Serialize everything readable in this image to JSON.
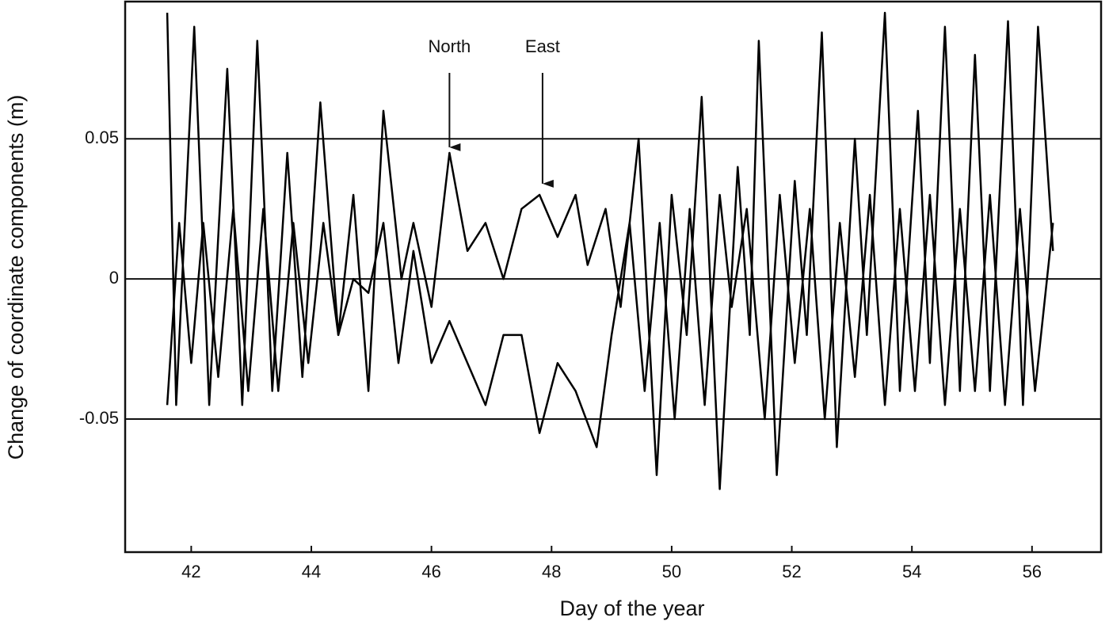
{
  "chart_data": {
    "type": "line",
    "xlabel": "Day of the year",
    "ylabel": "Change of coordinate components (m)",
    "xlim": [
      40.9,
      57.15
    ],
    "ylim": [
      -0.0975,
      0.099
    ],
    "xticks": [
      42,
      44,
      46,
      48,
      50,
      52,
      54,
      56
    ],
    "yticks": [
      -0.05,
      0,
      0.05
    ],
    "grid": true,
    "annotations": [
      {
        "text": "North",
        "x": 46.3,
        "y": 0.047
      },
      {
        "text": "East",
        "x": 47.85,
        "y": 0.034
      }
    ],
    "series": [
      {
        "color": "#000000",
        "x": [
          41.6,
          41.75,
          42.05,
          42.3,
          42.6,
          42.85,
          43.1,
          43.35,
          43.6,
          43.85,
          44.15,
          44.45,
          44.7,
          44.95,
          45.2,
          45.5,
          45.7,
          46.0,
          46.3,
          46.6,
          46.9,
          47.2,
          47.5,
          47.8,
          48.1,
          48.4,
          48.6,
          48.9,
          49.15,
          49.45,
          49.75,
          50.0,
          50.25,
          50.5,
          50.8,
          51.1,
          51.3,
          51.45,
          51.75,
          52.05,
          52.25,
          52.5,
          52.75,
          53.05,
          53.25,
          53.55,
          53.8,
          54.1,
          54.3,
          54.55,
          54.8,
          55.05,
          55.3,
          55.6,
          55.85,
          56.1,
          56.35
        ],
        "values": [
          0.095,
          -0.045,
          0.09,
          -0.045,
          0.075,
          -0.045,
          0.085,
          -0.04,
          0.045,
          -0.035,
          0.063,
          -0.02,
          0.03,
          -0.04,
          0.06,
          0.0,
          0.02,
          -0.01,
          0.045,
          0.01,
          0.02,
          0.0,
          0.025,
          0.03,
          0.015,
          0.03,
          0.005,
          0.025,
          -0.01,
          0.05,
          -0.07,
          0.03,
          -0.02,
          0.065,
          -0.075,
          0.04,
          -0.02,
          0.085,
          -0.07,
          0.035,
          -0.02,
          0.088,
          -0.06,
          0.05,
          -0.02,
          0.095,
          -0.04,
          0.06,
          -0.03,
          0.09,
          -0.04,
          0.08,
          -0.04,
          0.092,
          -0.045,
          0.09,
          0.01
        ]
      },
      {
        "color": "#000000",
        "x": [
          41.6,
          41.8,
          42.0,
          42.2,
          42.45,
          42.7,
          42.95,
          43.2,
          43.45,
          43.7,
          43.95,
          44.2,
          44.45,
          44.7,
          44.95,
          45.2,
          45.45,
          45.7,
          46.0,
          46.3,
          46.6,
          46.9,
          47.2,
          47.5,
          47.8,
          48.1,
          48.4,
          48.75,
          49.0,
          49.3,
          49.55,
          49.8,
          50.05,
          50.3,
          50.55,
          50.8,
          51.0,
          51.25,
          51.55,
          51.8,
          52.05,
          52.3,
          52.55,
          52.8,
          53.05,
          53.3,
          53.55,
          53.8,
          54.05,
          54.3,
          54.55,
          54.8,
          55.05,
          55.3,
          55.55,
          55.8,
          56.05,
          56.35
        ],
        "values": [
          -0.045,
          0.02,
          -0.03,
          0.02,
          -0.035,
          0.025,
          -0.04,
          0.025,
          -0.04,
          0.02,
          -0.03,
          0.02,
          -0.02,
          0.0,
          -0.005,
          0.02,
          -0.03,
          0.01,
          -0.03,
          -0.015,
          -0.03,
          -0.045,
          -0.02,
          -0.02,
          -0.055,
          -0.03,
          -0.04,
          -0.06,
          -0.02,
          0.02,
          -0.04,
          0.02,
          -0.05,
          0.025,
          -0.045,
          0.03,
          -0.01,
          0.025,
          -0.05,
          0.03,
          -0.03,
          0.025,
          -0.05,
          0.02,
          -0.035,
          0.03,
          -0.045,
          0.025,
          -0.04,
          0.03,
          -0.045,
          0.025,
          -0.04,
          0.03,
          -0.045,
          0.025,
          -0.04,
          0.02
        ]
      }
    ]
  }
}
